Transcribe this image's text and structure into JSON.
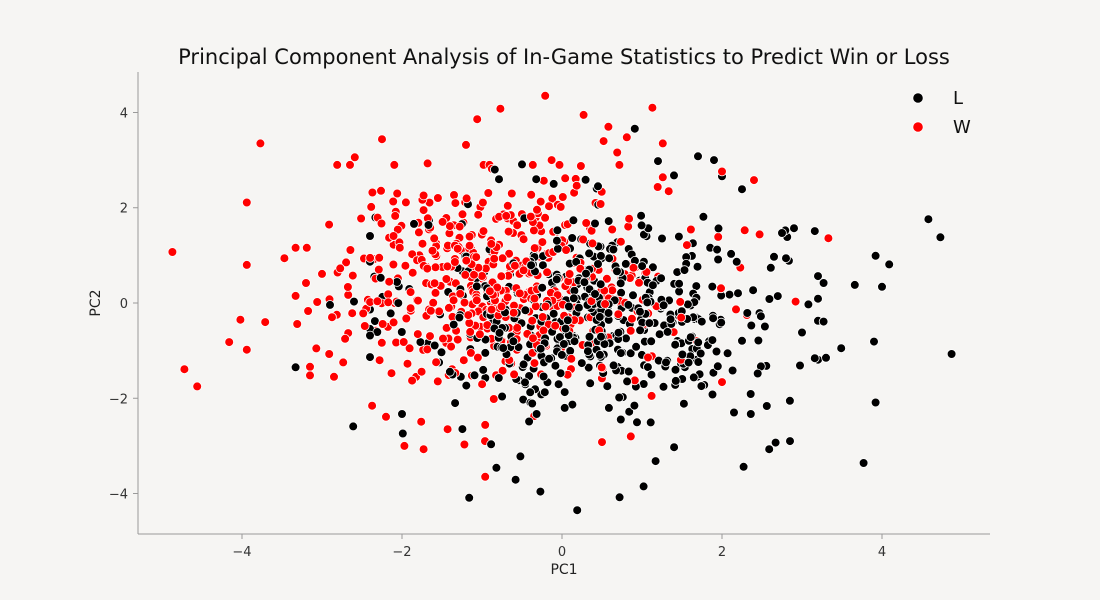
{
  "chart_data": {
    "type": "scatter",
    "title": "Principal Component Analysis of In-Game Statistics to Predict Win or Loss",
    "xlabel": "PC1",
    "ylabel": "PC2",
    "xlim": [
      -5.3,
      5.35
    ],
    "ylim": [
      -4.85,
      4.85
    ],
    "xticks": [
      -4,
      -2,
      0,
      2,
      4
    ],
    "yticks": [
      -4,
      -2,
      0,
      2,
      4
    ],
    "xtick_labels": [
      "−4",
      "−2",
      "0",
      "2",
      "4"
    ],
    "ytick_labels": [
      "−4",
      "−2",
      "0",
      "2",
      "4"
    ],
    "grid": false,
    "legend_position": "top-right",
    "series": [
      {
        "name": "L",
        "color": "#000000",
        "points": [
          [
            4.58,
            1.76
          ],
          [
            4.73,
            1.38
          ],
          [
            4.09,
            0.81
          ],
          [
            3.92,
            0.99
          ],
          [
            3.66,
            0.38
          ],
          [
            4.0,
            0.34
          ],
          [
            4.87,
            -1.07
          ],
          [
            3.9,
            -0.81
          ],
          [
            3.92,
            -2.09
          ],
          [
            3.77,
            -3.36
          ],
          [
            3.49,
            -0.95
          ],
          [
            3.3,
            -1.15
          ],
          [
            3.16,
            -1.16
          ],
          [
            3.27,
            0.42
          ],
          [
            3.27,
            -0.39
          ],
          [
            3.08,
            -0.03
          ],
          [
            3.0,
            -0.62
          ],
          [
            3.16,
            1.51
          ],
          [
            2.9,
            1.57
          ],
          [
            2.75,
            1.47
          ],
          [
            2.8,
            0.94
          ],
          [
            2.65,
            0.97
          ],
          [
            2.85,
            -2.9
          ],
          [
            2.67,
            -2.93
          ],
          [
            2.59,
            -3.07
          ],
          [
            2.27,
            -3.44
          ],
          [
            2.36,
            -2.33
          ],
          [
            2.15,
            -2.3
          ],
          [
            2.25,
            2.39
          ],
          [
            2.0,
            2.66
          ],
          [
            1.9,
            3.0
          ],
          [
            1.7,
            3.08
          ],
          [
            1.2,
            2.98
          ],
          [
            0.91,
            3.66
          ],
          [
            0.72,
            -4.08
          ],
          [
            1.02,
            -3.85
          ],
          [
            1.17,
            -3.32
          ],
          [
            0.19,
            -4.35
          ],
          [
            -0.27,
            -3.96
          ],
          [
            -1.16,
            -4.09
          ],
          [
            -0.82,
            -3.46
          ],
          [
            -0.58,
            -3.71
          ],
          [
            -0.52,
            -3.22
          ],
          [
            -2.61,
            -2.59
          ],
          [
            -2.6,
            0.03
          ],
          [
            -2.9,
            -0.04
          ],
          [
            -3.33,
            -1.35
          ],
          [
            -1.99,
            -2.74
          ],
          [
            -2.0,
            -2.33
          ],
          [
            -1.85,
            1.66
          ],
          [
            -0.84,
            2.8
          ],
          [
            -0.5,
            2.91
          ],
          [
            0.45,
            2.45
          ],
          [
            1.4,
            2.68
          ]
        ]
      },
      {
        "name": "W",
        "color": "#ff0000",
        "points": [
          [
            -4.87,
            1.07
          ],
          [
            -4.72,
            -1.39
          ],
          [
            -4.56,
            -1.75
          ],
          [
            -4.16,
            -0.82
          ],
          [
            -4.02,
            -0.35
          ],
          [
            -3.94,
            0.8
          ],
          [
            -3.94,
            -0.98
          ],
          [
            -3.94,
            2.11
          ],
          [
            -3.77,
            3.35
          ],
          [
            -3.71,
            -0.4
          ],
          [
            -3.47,
            0.94
          ],
          [
            -3.33,
            1.16
          ],
          [
            -3.33,
            0.15
          ],
          [
            -3.31,
            -0.44
          ],
          [
            -3.19,
            1.16
          ],
          [
            -3.15,
            -1.34
          ],
          [
            -3.15,
            -1.52
          ],
          [
            -3.06,
            0.02
          ],
          [
            -3.0,
            0.61
          ],
          [
            -2.91,
            -1.07
          ],
          [
            -2.85,
            -1.55
          ],
          [
            -2.81,
            2.9
          ],
          [
            -2.65,
            2.9
          ],
          [
            -2.59,
            3.06
          ],
          [
            -2.25,
            3.44
          ],
          [
            -2.37,
            2.32
          ],
          [
            -2.2,
            -2.39
          ],
          [
            -1.97,
            -3.0
          ],
          [
            -1.73,
            -3.07
          ],
          [
            -1.43,
            -2.65
          ],
          [
            -1.22,
            -2.97
          ],
          [
            -0.96,
            -3.65
          ],
          [
            -0.77,
            4.08
          ],
          [
            -0.21,
            4.35
          ],
          [
            0.27,
            3.95
          ],
          [
            0.52,
            3.4
          ],
          [
            0.58,
            3.7
          ],
          [
            0.69,
            3.16
          ],
          [
            0.81,
            3.48
          ],
          [
            1.13,
            4.1
          ],
          [
            1.26,
            2.64
          ],
          [
            1.26,
            3.35
          ],
          [
            2.0,
            2.76
          ],
          [
            2.4,
            2.58
          ],
          [
            3.33,
            1.36
          ],
          [
            2.92,
            0.03
          ],
          [
            2.47,
            1.44
          ],
          [
            2.0,
            -1.66
          ],
          [
            0.86,
            -2.8
          ],
          [
            0.5,
            -2.92
          ],
          [
            -0.96,
            -2.56
          ],
          [
            -2.28,
            -1.2
          ],
          [
            -1.06,
            3.86
          ],
          [
            -1.2,
            3.32
          ],
          [
            -1.68,
            2.93
          ],
          [
            -2.06,
            2.3
          ],
          [
            -0.13,
            3.0
          ]
        ]
      }
    ]
  }
}
